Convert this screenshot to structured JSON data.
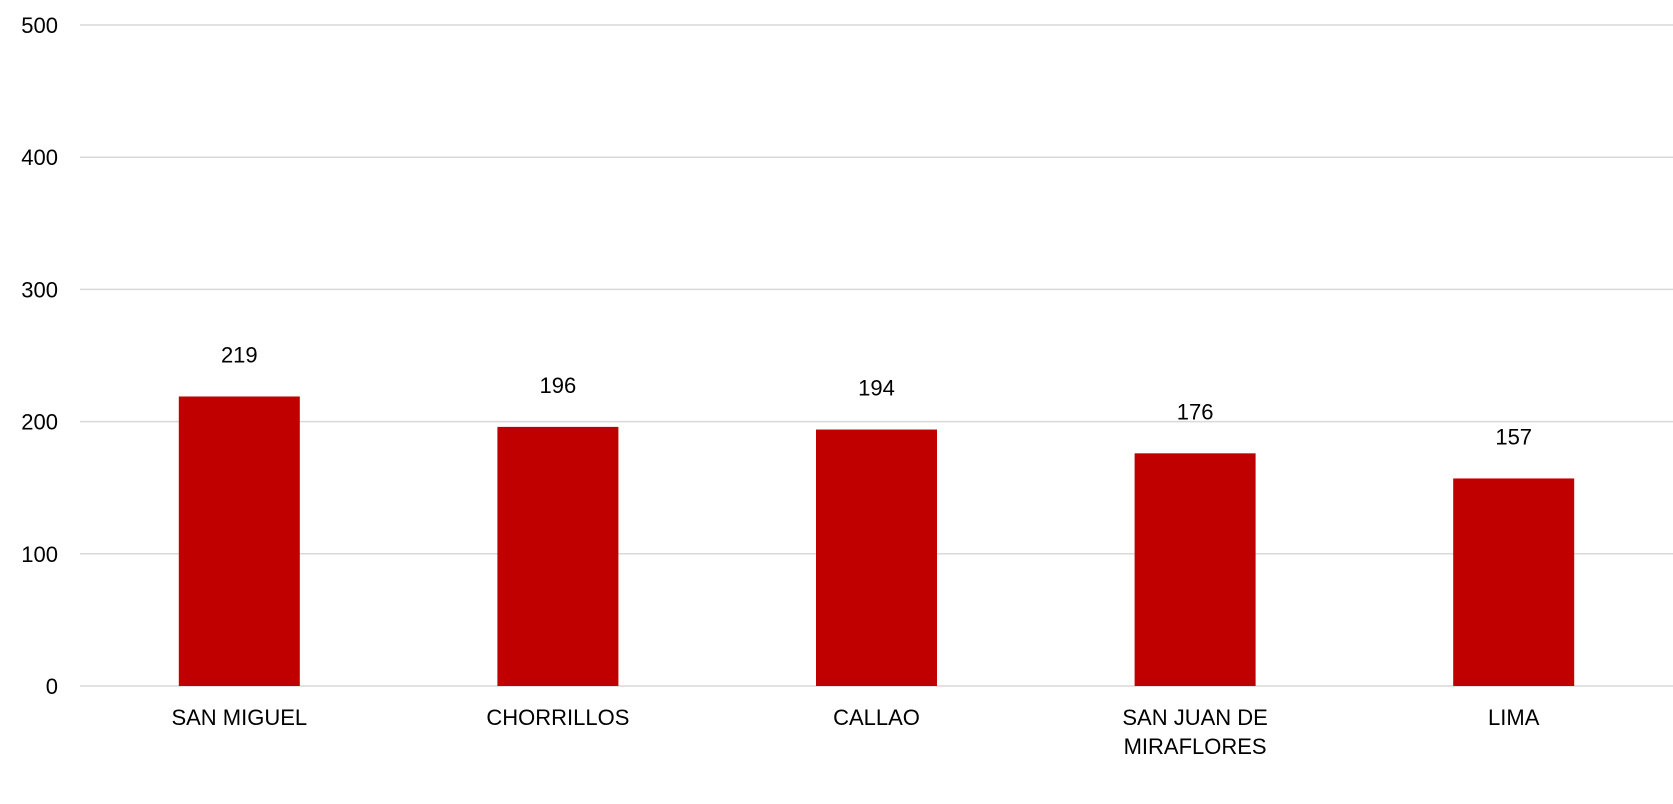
{
  "chart_data": {
    "type": "bar",
    "categories": [
      [
        "SAN MIGUEL"
      ],
      [
        "CHORRILLOS"
      ],
      [
        "CALLAO"
      ],
      [
        "SAN JUAN DE",
        "MIRAFLORES"
      ],
      [
        "LIMA"
      ]
    ],
    "values": [
      219,
      196,
      194,
      176,
      157
    ],
    "data_labels": [
      "219",
      "196",
      "194",
      "176",
      "157"
    ],
    "yticks": [
      0,
      100,
      200,
      300,
      400,
      500
    ],
    "ylim": [
      0,
      500
    ],
    "grid": true,
    "legend": "none",
    "colors": {
      "bar": "#c00000",
      "grid": "#d9d9d9",
      "text": "#000000"
    }
  }
}
